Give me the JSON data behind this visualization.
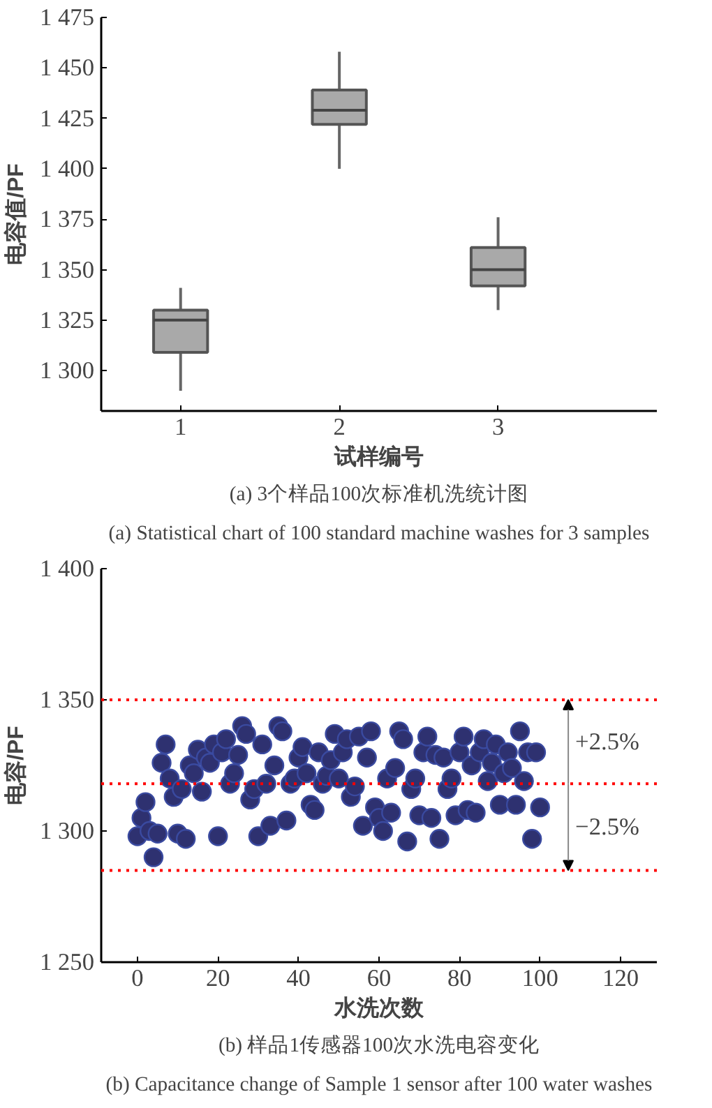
{
  "chart_data": [
    {
      "type": "box",
      "title": "(a) 3个样品100次标准机洗统计图",
      "subtitle": "(a) Statistical chart of 100 standard machine washes for 3 samples",
      "xlabel": "试样编号",
      "ylabel": "电容值/PF",
      "categories": [
        "1",
        "2",
        "3"
      ],
      "color": "#a9a9a9",
      "boxes": [
        {
          "low": 1290,
          "q1": 1309,
          "median": 1325,
          "q3": 1330,
          "high": 1341
        },
        {
          "low": 1400,
          "q1": 1422,
          "median": 1429,
          "q3": 1439,
          "high": 1458
        },
        {
          "low": 1330,
          "q1": 1342,
          "median": 1350,
          "q3": 1361,
          "high": 1376
        }
      ],
      "ylim": [
        1280,
        1475
      ],
      "yticks": [
        {
          "value": 1300,
          "label": "1 300"
        },
        {
          "value": 1325,
          "label": "1 325"
        },
        {
          "value": 1350,
          "label": "1 350"
        },
        {
          "value": 1375,
          "label": "1 375"
        },
        {
          "value": 1400,
          "label": "1 400"
        },
        {
          "value": 1425,
          "label": "1 425"
        },
        {
          "value": 1450,
          "label": "1 450"
        },
        {
          "value": 1475,
          "label": "1 475"
        }
      ],
      "grid": false
    },
    {
      "type": "scatter",
      "title": "(b) 样品1传感器100次水洗电容变化",
      "subtitle": "(b) Capacitance change of Sample 1 sensor after 100 water washes",
      "xlabel": "水洗次数",
      "ylabel": "电容/PF",
      "marker": "circle",
      "grid": false,
      "x": [
        0,
        1,
        2,
        3,
        4,
        5,
        6,
        7,
        8,
        9,
        10,
        11,
        12,
        13,
        14,
        15,
        16,
        17,
        18,
        19,
        20,
        21,
        22,
        23,
        24,
        25,
        26,
        27,
        28,
        29,
        30,
        31,
        32,
        33,
        34,
        35,
        36,
        37,
        38,
        39,
        40,
        41,
        42,
        43,
        44,
        45,
        46,
        47,
        48,
        49,
        50,
        51,
        52,
        53,
        54,
        55,
        56,
        57,
        58,
        59,
        60,
        61,
        62,
        63,
        64,
        65,
        66,
        67,
        68,
        69,
        70,
        71,
        72,
        73,
        74,
        75,
        76,
        77,
        78,
        79,
        80,
        81,
        82,
        83,
        84,
        85,
        86,
        87,
        88,
        89,
        90,
        91,
        92,
        93,
        94,
        95,
        96,
        97,
        98,
        99,
        100
      ],
      "series": [
        {
          "color": "#2e3170",
          "values": [
            1298,
            1305,
            1311,
            1300,
            1290,
            1299,
            1326,
            1333,
            1320,
            1313,
            1299,
            1316,
            1297,
            1325,
            1322,
            1331,
            1315,
            1328,
            1326,
            1333,
            1298,
            1330,
            1335,
            1318,
            1322,
            1329,
            1340,
            1337,
            1312,
            1316,
            1298,
            1333,
            1318,
            1302,
            1325,
            1340,
            1338,
            1304,
            1318,
            1320,
            1328,
            1332,
            1322,
            1310,
            1308,
            1330,
            1318,
            1321,
            1327,
            1337,
            1320,
            1330,
            1335,
            1313,
            1317,
            1336,
            1302,
            1328,
            1338,
            1309,
            1305,
            1300,
            1320,
            1307,
            1324,
            1338,
            1335,
            1296,
            1316,
            1320,
            1306,
            1330,
            1336,
            1305,
            1329,
            1297,
            1328,
            1316,
            1320,
            1306,
            1330,
            1336,
            1308,
            1325,
            1307,
            1330,
            1335,
            1319,
            1326,
            1333,
            1310,
            1322,
            1330,
            1324,
            1310,
            1338,
            1319,
            1330,
            1297,
            1330,
            1309
          ]
        }
      ],
      "xlim": [
        -9,
        129
      ],
      "xticks": [
        0,
        20,
        40,
        60,
        80,
        100,
        120
      ],
      "ylim": [
        1250,
        1400
      ],
      "yticks": [
        {
          "value": 1250,
          "label": "1 250"
        },
        {
          "value": 1300,
          "label": "1 300"
        },
        {
          "value": 1350,
          "label": "1 350"
        },
        {
          "value": 1400,
          "label": "1 400"
        }
      ],
      "ref_lines": [
        {
          "axis": "y",
          "value": 1350,
          "color": "#ff0000",
          "line_style": "dotted"
        },
        {
          "axis": "y",
          "value": 1318,
          "color": "#ff0000",
          "line_style": "dotted"
        },
        {
          "axis": "y",
          "value": 1285,
          "color": "#ff0000",
          "line_style": "dotted"
        }
      ],
      "annotations": [
        {
          "text": "+2.5%",
          "x": 107,
          "y": 1350
        },
        {
          "text": "−2.5%",
          "x": 107,
          "y": 1285
        }
      ]
    }
  ]
}
